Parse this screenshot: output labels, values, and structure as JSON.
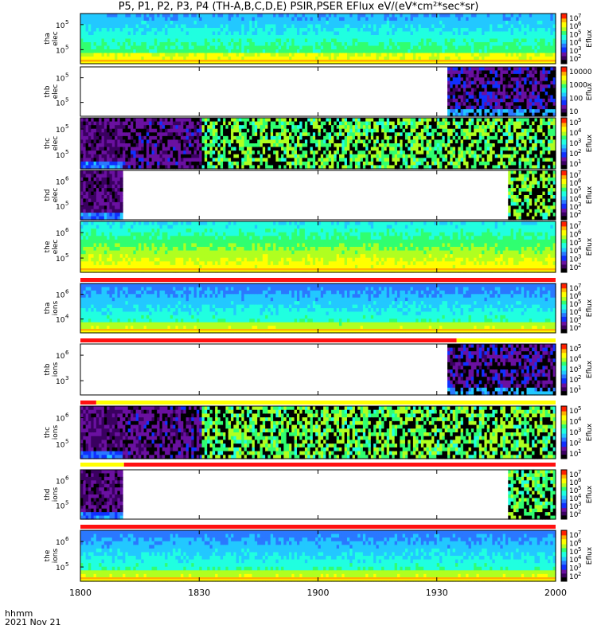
{
  "title": "P5, P1, P2, P3, P4 (TH-A,B,C,D,E) PSIR,PSER EFlux eV/(eV*cm²*sec*sr)",
  "footer": {
    "units": "hhmm",
    "date": "2021 Nov 21"
  },
  "colors": {
    "qflag_red": "#ff1010",
    "qflag_yellow": "#ffff00",
    "palette": [
      "#000000",
      "#3a0060",
      "#6a10a0",
      "#1030ff",
      "#2a78ff",
      "#22c8ff",
      "#20ffe0",
      "#30ff70",
      "#b0ff20",
      "#ffff00",
      "#ffb000",
      "#ff2000"
    ]
  },
  "chart_data": {
    "type": "heatmap",
    "x_axis": {
      "ticks": [
        "1800",
        "1830",
        "1900",
        "1930",
        "2000"
      ],
      "range_minutes": [
        0,
        120
      ]
    },
    "panels": [
      {
        "probe": "tha",
        "species": "elec",
        "ylabel": [
          "tha",
          "elec"
        ],
        "ylog": true,
        "yticks": [
          "10",
          "10"
        ],
        "ytick_exp": [
          "5",
          "5"
        ],
        "colorbar": {
          "label": "Eflux",
          "ticks": [
            "10",
            "10",
            "10",
            "10",
            "10",
            "10"
          ],
          "exps": [
            "7",
            "6",
            "5",
            "4",
            "3",
            "2"
          ]
        },
        "coverage": [
          [
            0,
            120
          ]
        ],
        "texture": "smooth",
        "level": 0.55,
        "bottom_band": true,
        "qflag": []
      },
      {
        "probe": "thb",
        "species": "elec",
        "ylabel": [
          "thb",
          "elec"
        ],
        "ylog": true,
        "yticks": [
          "10",
          "10"
        ],
        "ytick_exp": [
          "5",
          "5"
        ],
        "colorbar": {
          "label": "Eflux",
          "ticks": [
            "10000",
            "1000",
            "100",
            "10"
          ],
          "exps": [
            "",
            "",
            "",
            ""
          ]
        },
        "coverage": [
          [
            93,
            120
          ]
        ],
        "texture": "noisy",
        "level": 0.15,
        "bottom_band": false,
        "qflag": []
      },
      {
        "probe": "thc",
        "species": "elec",
        "ylabel": [
          "thc",
          "elec"
        ],
        "ylog": true,
        "yticks": [
          "10",
          "10"
        ],
        "ytick_exp": [
          "5",
          "5"
        ],
        "colorbar": {
          "label": "Eflux",
          "ticks": [
            "10",
            "10",
            "10",
            "10",
            "10"
          ],
          "exps": [
            "5",
            "4",
            "3",
            "2",
            "1"
          ]
        },
        "coverage": [
          [
            0,
            120
          ]
        ],
        "texture": "mixed",
        "level": 0.3,
        "bottom_band": false,
        "qflag": []
      },
      {
        "probe": "thd",
        "species": "elec",
        "ylabel": [
          "thd",
          "elec"
        ],
        "ylog": true,
        "yticks": [
          "10",
          "10"
        ],
        "ytick_exp": [
          "6",
          "5"
        ],
        "colorbar": {
          "label": "Eflux",
          "ticks": [
            "10",
            "10",
            "10",
            "10",
            "10",
            "10"
          ],
          "exps": [
            "7",
            "6",
            "5",
            "4",
            "3",
            "2"
          ]
        },
        "coverage": [
          [
            0,
            11
          ],
          [
            108,
            120
          ]
        ],
        "texture": "mixed_d",
        "level": 0.2,
        "bottom_band": false,
        "qflag": []
      },
      {
        "probe": "the",
        "species": "elec",
        "ylabel": [
          "the",
          "elec"
        ],
        "ylog": true,
        "yticks": [
          "10",
          "10"
        ],
        "ytick_exp": [
          "6",
          "5"
        ],
        "colorbar": {
          "label": "Eflux",
          "ticks": [
            "10",
            "10",
            "10",
            "10",
            "10",
            "10"
          ],
          "exps": [
            "7",
            "6",
            "5",
            "4",
            "3",
            "2"
          ]
        },
        "coverage": [
          [
            0,
            120
          ]
        ],
        "texture": "smooth_green",
        "level": 0.6,
        "bottom_band": true,
        "qflag": [
          {
            "from": 0,
            "to": 120,
            "color": "red"
          }
        ]
      },
      {
        "probe": "tha",
        "species": "ions",
        "ylabel": [
          "tha",
          "ions"
        ],
        "ylog": true,
        "yticks": [
          "10",
          "10"
        ],
        "ytick_exp": [
          "6",
          "4"
        ],
        "colorbar": {
          "label": "Eflux",
          "ticks": [
            "10",
            "10",
            "10",
            "10",
            "10",
            "10"
          ],
          "exps": [
            "7",
            "6",
            "5",
            "4",
            "3",
            "2"
          ]
        },
        "coverage": [
          [
            0,
            120
          ]
        ],
        "texture": "smooth_ion",
        "level": 0.5,
        "bottom_band": true,
        "qflag": [
          {
            "from": 0,
            "to": 95,
            "color": "red"
          },
          {
            "from": 95,
            "to": 120,
            "color": "yellow"
          }
        ]
      },
      {
        "probe": "thb",
        "species": "ions",
        "ylabel": [
          "thb",
          "ions"
        ],
        "ylog": true,
        "yticks": [
          "10",
          "10"
        ],
        "ytick_exp": [
          "6",
          "3"
        ],
        "colorbar": {
          "label": "Eflux",
          "ticks": [
            "10",
            "10",
            "10",
            "10",
            "10"
          ],
          "exps": [
            "5",
            "4",
            "3",
            "2",
            "1"
          ]
        },
        "coverage": [
          [
            93,
            120
          ]
        ],
        "texture": "noisy",
        "level": 0.2,
        "bottom_band": false,
        "qflag": [
          {
            "from": 0,
            "to": 4,
            "color": "red"
          },
          {
            "from": 4,
            "to": 120,
            "color": "yellow"
          }
        ]
      },
      {
        "probe": "thc",
        "species": "ions",
        "ylabel": [
          "thc",
          "ions"
        ],
        "ylog": true,
        "yticks": [
          "10",
          "10"
        ],
        "ytick_exp": [
          "6",
          "5"
        ],
        "colorbar": {
          "label": "Eflux",
          "ticks": [
            "10",
            "10",
            "10",
            "10",
            "10"
          ],
          "exps": [
            "5",
            "4",
            "3",
            "2",
            "1"
          ]
        },
        "coverage": [
          [
            0,
            120
          ]
        ],
        "texture": "mixed",
        "level": 0.35,
        "bottom_band": false,
        "qflag": [
          {
            "from": 0,
            "to": 11,
            "color": "yellow"
          },
          {
            "from": 11,
            "to": 120,
            "color": "red"
          }
        ]
      },
      {
        "probe": "thd",
        "species": "ions",
        "ylabel": [
          "thd",
          "ions"
        ],
        "ylog": true,
        "yticks": [
          "10",
          "10"
        ],
        "ytick_exp": [
          "6",
          "5"
        ],
        "colorbar": {
          "label": "Eflux",
          "ticks": [
            "10",
            "10",
            "10",
            "10",
            "10",
            "10"
          ],
          "exps": [
            "7",
            "6",
            "5",
            "4",
            "3",
            "2"
          ]
        },
        "coverage": [
          [
            0,
            11
          ],
          [
            108,
            120
          ]
        ],
        "texture": "mixed_d",
        "level": 0.2,
        "bottom_band": false,
        "qflag": [
          {
            "from": 0,
            "to": 120,
            "color": "red"
          }
        ]
      },
      {
        "probe": "the",
        "species": "ions",
        "ylabel": [
          "the",
          "ions"
        ],
        "ylog": true,
        "yticks": [
          "10",
          "10"
        ],
        "ytick_exp": [
          "6",
          "5"
        ],
        "colorbar": {
          "label": "Eflux",
          "ticks": [
            "10",
            "10",
            "10",
            "10",
            "10",
            "10"
          ],
          "exps": [
            "7",
            "6",
            "5",
            "4",
            "3",
            "2"
          ]
        },
        "coverage": [
          [
            0,
            120
          ]
        ],
        "texture": "smooth_ion",
        "level": 0.5,
        "bottom_band": true,
        "qflag": []
      }
    ]
  }
}
